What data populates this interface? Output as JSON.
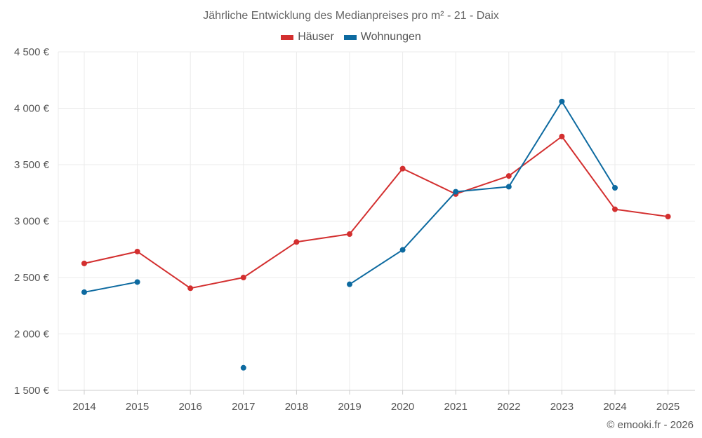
{
  "chart_data": {
    "type": "line",
    "title": "Jährliche Entwicklung des Medianpreises pro m² - 21 - Daix",
    "categories": [
      "2014",
      "2015",
      "2016",
      "2017",
      "2018",
      "2019",
      "2020",
      "2021",
      "2022",
      "2023",
      "2024",
      "2025"
    ],
    "ylim": [
      1500,
      4500
    ],
    "yticks": [
      1500,
      2000,
      2500,
      3000,
      3500,
      4000,
      4500
    ],
    "ytick_labels": [
      "1 500 €",
      "2 000 €",
      "2 500 €",
      "3 000 €",
      "3 500 €",
      "4 000 €",
      "4 500 €"
    ],
    "legend_position": "top-center",
    "grid": true,
    "series": [
      {
        "name": "Häuser",
        "color": "#d32f2f",
        "values": [
          2625,
          2730,
          2405,
          2500,
          2815,
          2885,
          3465,
          3240,
          3400,
          3750,
          3105,
          3040
        ]
      },
      {
        "name": "Wohnungen",
        "color": "#0d6aa0",
        "values": [
          2370,
          2460,
          null,
          1700,
          null,
          2440,
          2745,
          3260,
          3305,
          4060,
          3295,
          null
        ]
      }
    ]
  },
  "credit": "© emooki.fr - 2026"
}
